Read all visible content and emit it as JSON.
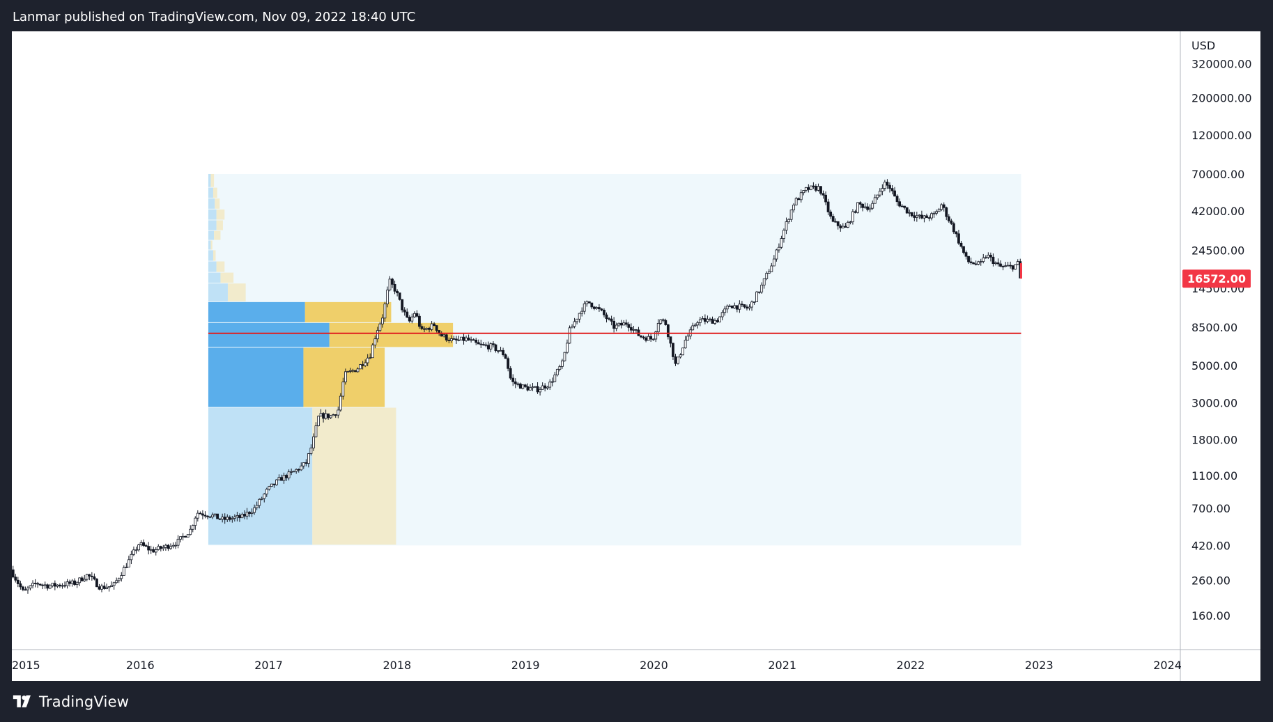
{
  "header": {
    "published_text": "Lanmar published on TradingView.com, Nov 09, 2022 18:40 UTC"
  },
  "footer": {
    "brand": "TradingView",
    "logo_icon": "tradingview-logo-icon"
  },
  "colors": {
    "background_dark": "#1e222d",
    "chart_bg": "#ffffff",
    "candle_up": "#ffffff",
    "candle_down": "#131722",
    "poc_line": "#e01e1e",
    "profile_up_value_area": "#5aaeeb",
    "profile_down_value_area": "#efcf6a",
    "profile_up": "#bfe1f6",
    "profile_down": "#f2ebcc",
    "range_box": "#eff8fc",
    "price_badge": "#f23645"
  },
  "chart_data": {
    "type": "candlestick",
    "symbol_currency": "USD",
    "yscale": "log",
    "ylim": [
      100,
      500000
    ],
    "xlim": [
      2015.0,
      2024.1
    ],
    "y_ticks": [
      "320000.00",
      "200000.00",
      "120000.00",
      "70000.00",
      "42000.00",
      "24500.00",
      "14500.00",
      "8500.00",
      "5000.00",
      "3000.00",
      "1800.00",
      "1100.00",
      "700.00",
      "420.00",
      "260.00",
      "160.00"
    ],
    "x_ticks": [
      "2015",
      "2016",
      "2017",
      "2018",
      "2019",
      "2020",
      "2021",
      "2022",
      "2023",
      "2024"
    ],
    "x_tick_values": [
      2015,
      2016,
      2017,
      2018,
      2019,
      2020,
      2021,
      2022,
      2023,
      2024
    ],
    "last_price": "16572.00",
    "last_price_value": 16572,
    "poc_price": 7800,
    "price_path": [
      [
        2015.0,
        300
      ],
      [
        2015.1,
        220
      ],
      [
        2015.2,
        250
      ],
      [
        2015.3,
        240
      ],
      [
        2015.5,
        250
      ],
      [
        2015.6,
        280
      ],
      [
        2015.7,
        235
      ],
      [
        2015.8,
        240
      ],
      [
        2015.9,
        320
      ],
      [
        2016.0,
        430
      ],
      [
        2016.1,
        390
      ],
      [
        2016.2,
        410
      ],
      [
        2016.3,
        440
      ],
      [
        2016.4,
        520
      ],
      [
        2016.45,
        660
      ],
      [
        2016.55,
        640
      ],
      [
        2016.65,
        600
      ],
      [
        2016.8,
        620
      ],
      [
        2016.9,
        700
      ],
      [
        2017.0,
        900
      ],
      [
        2017.1,
        1050
      ],
      [
        2017.2,
        1150
      ],
      [
        2017.3,
        1300
      ],
      [
        2017.35,
        1700
      ],
      [
        2017.4,
        2500
      ],
      [
        2017.5,
        2500
      ],
      [
        2017.55,
        2700
      ],
      [
        2017.6,
        4400
      ],
      [
        2017.7,
        4800
      ],
      [
        2017.8,
        5800
      ],
      [
        2017.85,
        8000
      ],
      [
        2017.9,
        10000
      ],
      [
        2017.95,
        16000
      ],
      [
        2018.0,
        14000
      ],
      [
        2018.05,
        11000
      ],
      [
        2018.1,
        9000
      ],
      [
        2018.15,
        10500
      ],
      [
        2018.2,
        8000
      ],
      [
        2018.3,
        8800
      ],
      [
        2018.35,
        7600
      ],
      [
        2018.45,
        7000
      ],
      [
        2018.55,
        7200
      ],
      [
        2018.65,
        6600
      ],
      [
        2018.75,
        6500
      ],
      [
        2018.85,
        5800
      ],
      [
        2018.9,
        4000
      ],
      [
        2019.0,
        3700
      ],
      [
        2019.1,
        3600
      ],
      [
        2019.2,
        3900
      ],
      [
        2019.3,
        5200
      ],
      [
        2019.35,
        8000
      ],
      [
        2019.45,
        11000
      ],
      [
        2019.5,
        12000
      ],
      [
        2019.6,
        10500
      ],
      [
        2019.7,
        8500
      ],
      [
        2019.8,
        9000
      ],
      [
        2019.9,
        7500
      ],
      [
        2020.0,
        7200
      ],
      [
        2020.05,
        9500
      ],
      [
        2020.1,
        9000
      ],
      [
        2020.18,
        5000
      ],
      [
        2020.25,
        7000
      ],
      [
        2020.35,
        9300
      ],
      [
        2020.5,
        9300
      ],
      [
        2020.6,
        11500
      ],
      [
        2020.75,
        11000
      ],
      [
        2020.85,
        15000
      ],
      [
        2020.95,
        22000
      ],
      [
        2021.0,
        29000
      ],
      [
        2021.1,
        47000
      ],
      [
        2021.2,
        57000
      ],
      [
        2021.3,
        58000
      ],
      [
        2021.4,
        36000
      ],
      [
        2021.5,
        33000
      ],
      [
        2021.6,
        46000
      ],
      [
        2021.7,
        44000
      ],
      [
        2021.8,
        62000
      ],
      [
        2021.85,
        58000
      ],
      [
        2021.9,
        48000
      ],
      [
        2022.0,
        41000
      ],
      [
        2022.1,
        38000
      ],
      [
        2022.2,
        40000
      ],
      [
        2022.25,
        46000
      ],
      [
        2022.35,
        32000
      ],
      [
        2022.45,
        21000
      ],
      [
        2022.55,
        20000
      ],
      [
        2022.6,
        23000
      ],
      [
        2022.7,
        19500
      ],
      [
        2022.8,
        19500
      ],
      [
        2022.85,
        20500
      ],
      [
        2022.86,
        16572
      ]
    ],
    "range_box": {
      "x_start": 2016.53,
      "x_end": 2022.86,
      "price_low": 420,
      "price_high": 70000
    },
    "volume_profile": [
      {
        "price_low": 420,
        "price_high": 2800,
        "up": 0.128,
        "down": 0.103,
        "value_area": false
      },
      {
        "price_low": 2800,
        "price_high": 6400,
        "up": 0.117,
        "down": 0.1,
        "value_area": true
      },
      {
        "price_low": 6400,
        "price_high": 9000,
        "up": 0.149,
        "down": 0.152,
        "value_area": true
      },
      {
        "price_low": 9000,
        "price_high": 12000,
        "up": 0.119,
        "down": 0.106,
        "value_area": true
      },
      {
        "price_low": 12000,
        "price_high": 15500,
        "up": 0.024,
        "down": 0.022,
        "value_area": false
      },
      {
        "price_low": 15500,
        "price_high": 18000,
        "up": 0.015,
        "down": 0.016,
        "value_area": false
      },
      {
        "price_low": 18000,
        "price_high": 21000,
        "up": 0.01,
        "down": 0.01,
        "value_area": false
      },
      {
        "price_low": 21000,
        "price_high": 24500,
        "up": 0.006,
        "down": 0.003,
        "value_area": false
      },
      {
        "price_low": 24500,
        "price_high": 28000,
        "up": 0.003,
        "down": 0.002,
        "value_area": false
      },
      {
        "price_low": 28000,
        "price_high": 32000,
        "up": 0.007,
        "down": 0.008,
        "value_area": false
      },
      {
        "price_low": 32000,
        "price_high": 37000,
        "up": 0.01,
        "down": 0.008,
        "value_area": false
      },
      {
        "price_low": 37000,
        "price_high": 43000,
        "up": 0.01,
        "down": 0.01,
        "value_area": false
      },
      {
        "price_low": 43000,
        "price_high": 50000,
        "up": 0.008,
        "down": 0.006,
        "value_area": false
      },
      {
        "price_low": 50000,
        "price_high": 58000,
        "up": 0.006,
        "down": 0.005,
        "value_area": false
      },
      {
        "price_low": 58000,
        "price_high": 70000,
        "up": 0.003,
        "down": 0.004,
        "value_area": false
      }
    ]
  }
}
